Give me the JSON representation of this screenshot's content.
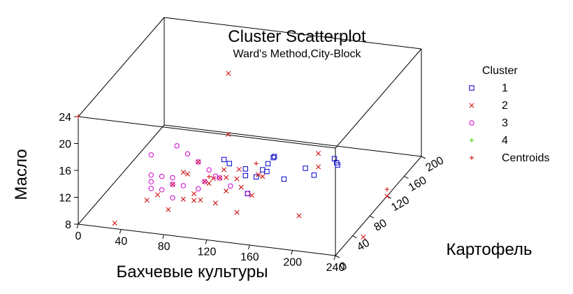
{
  "chart_data": {
    "type": "scatter",
    "title": "Cluster Scatterplot",
    "subtitle": "Ward's Method,City-Block",
    "xlabel": "Бахчевые культуры",
    "ylabel": "Картофель",
    "zlabel": "Масло",
    "xlim": [
      0,
      240
    ],
    "ylim": [
      0,
      200
    ],
    "zlim": [
      8,
      24
    ],
    "xticks": [
      "0",
      "40",
      "80",
      "120",
      "160",
      "200",
      "240"
    ],
    "yticks": [
      "0",
      "40",
      "80",
      "120",
      "160",
      "200"
    ],
    "zticks": [
      "8",
      "12",
      "16",
      "20",
      "24"
    ],
    "legend": {
      "title": "Cluster",
      "position": "right",
      "entries": [
        {
          "label": "1",
          "marker": "square",
          "color": "#0000cc"
        },
        {
          "label": "2",
          "marker": "x",
          "color": "#cc0000"
        },
        {
          "label": "3",
          "marker": "circle",
          "color": "#cc00cc"
        },
        {
          "label": "4",
          "marker": "plus",
          "color": "#33cc00"
        },
        {
          "label": "Centroids",
          "marker": "plus",
          "color": "#cc0000"
        }
      ]
    },
    "series": [
      {
        "name": "1",
        "marker": "square",
        "color": "#0000cc",
        "points": [
          [
            180,
            30,
            16
          ],
          [
            200,
            50,
            15.5
          ],
          [
            175,
            20,
            20
          ],
          [
            200,
            30,
            18
          ],
          [
            215,
            60,
            17.5
          ],
          [
            210,
            80,
            15
          ],
          [
            205,
            90,
            14.5
          ],
          [
            160,
            30,
            17
          ],
          [
            140,
            40,
            16
          ],
          [
            150,
            40,
            15
          ],
          [
            120,
            40,
            17
          ],
          [
            125,
            40,
            16.5
          ],
          [
            150,
            20,
            14
          ],
          [
            160,
            40,
            16
          ],
          [
            170,
            30,
            19
          ],
          [
            165,
            30,
            18
          ],
          [
            140,
            40,
            15
          ]
        ]
      },
      {
        "name": "2",
        "marker": "x",
        "color": "#cc0000",
        "points": [
          [
            100,
            100,
            25
          ],
          [
            120,
            50,
            20
          ],
          [
            200,
            60,
            18
          ],
          [
            200,
            60,
            16
          ],
          [
            160,
            20,
            17
          ],
          [
            30,
            10,
            8
          ],
          [
            140,
            20,
            11
          ],
          [
            190,
            40,
            10
          ],
          [
            110,
            40,
            14
          ],
          [
            120,
            30,
            15
          ],
          [
            130,
            50,
            15
          ],
          [
            160,
            30,
            16
          ],
          [
            90,
            20,
            12
          ],
          [
            100,
            20,
            12
          ],
          [
            110,
            10,
            13
          ],
          [
            120,
            20,
            12
          ],
          [
            130,
            20,
            14
          ],
          [
            140,
            30,
            14
          ],
          [
            80,
            20,
            14
          ],
          [
            90,
            20,
            16
          ],
          [
            100,
            30,
            17
          ],
          [
            110,
            20,
            15
          ],
          [
            70,
            10,
            13
          ],
          [
            60,
            10,
            12
          ],
          [
            80,
            10,
            11
          ],
          [
            100,
            20,
            13
          ],
          [
            150,
            30,
            13
          ],
          [
            130,
            20,
            16
          ],
          [
            240,
            120,
            8
          ],
          [
            250,
            40,
            8
          ],
          [
            90,
            30,
            15
          ],
          [
            120,
            40,
            15.5
          ],
          [
            140,
            20,
            16
          ],
          [
            110,
            30,
            14
          ]
        ]
      },
      {
        "name": "3",
        "marker": "circle",
        "color": "#cc00cc",
        "points": [
          [
            60,
            20,
            18
          ],
          [
            80,
            30,
            19
          ],
          [
            90,
            30,
            18
          ],
          [
            100,
            30,
            17
          ],
          [
            60,
            20,
            15
          ],
          [
            70,
            20,
            15
          ],
          [
            80,
            20,
            14
          ],
          [
            60,
            20,
            14
          ],
          [
            70,
            20,
            13
          ],
          [
            80,
            20,
            12
          ],
          [
            110,
            20,
            15
          ],
          [
            120,
            20,
            16
          ],
          [
            130,
            30,
            14
          ],
          [
            100,
            30,
            13
          ],
          [
            90,
            20,
            14
          ],
          [
            150,
            20,
            14
          ],
          [
            60,
            20,
            13
          ],
          [
            80,
            20,
            15
          ],
          [
            120,
            30,
            15
          ],
          [
            110,
            30,
            16
          ]
        ]
      },
      {
        "name": "Centroids",
        "marker": "plus",
        "color": "#cc0000",
        "points": [
          [
            0,
            0,
            24
          ],
          [
            110,
            30,
            15
          ],
          [
            150,
            40,
            17
          ],
          [
            240,
            120,
            9
          ]
        ]
      }
    ]
  }
}
